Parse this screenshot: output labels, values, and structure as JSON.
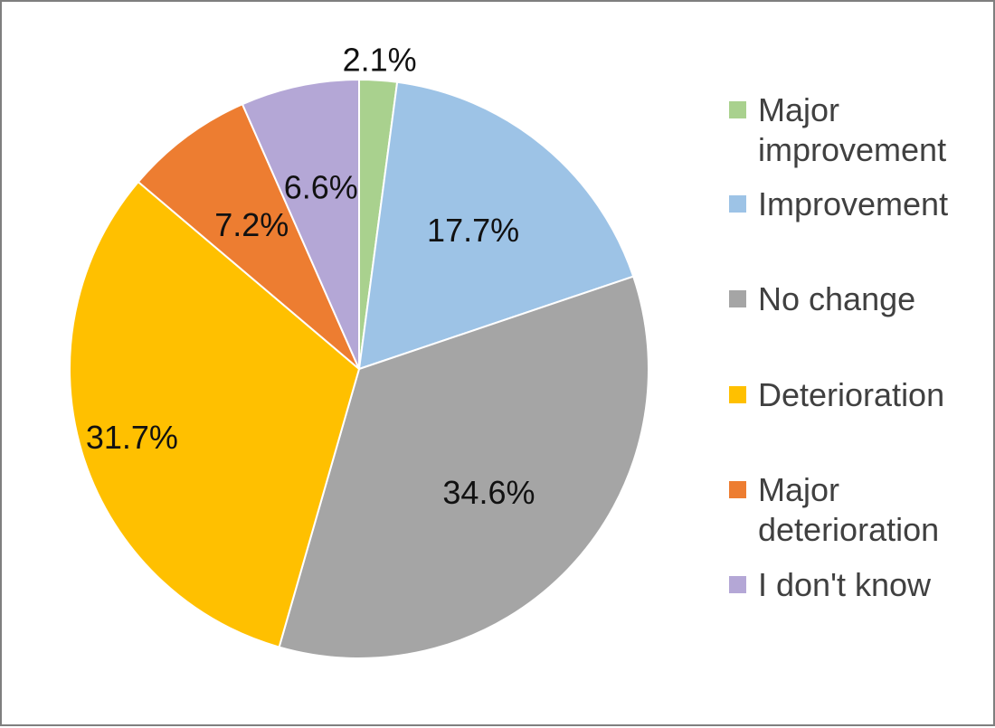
{
  "chart_data": {
    "type": "pie",
    "slices": [
      {
        "label": "Major improvement",
        "value": 2.1,
        "display": "2.1%",
        "color": "#a9d18e"
      },
      {
        "label": "Improvement",
        "value": 17.7,
        "display": "17.7%",
        "color": "#9dc3e6"
      },
      {
        "label": "No change",
        "value": 34.6,
        "display": "34.6%",
        "color": "#a5a5a5"
      },
      {
        "label": "Deterioration",
        "value": 31.7,
        "display": "31.7%",
        "color": "#ffc000"
      },
      {
        "label": "Major deterioration",
        "value": 7.2,
        "display": "7.2%",
        "color": "#ed7d31"
      },
      {
        "label": "I don't know",
        "value": 6.6,
        "display": "6.6%",
        "color": "#b4a7d6"
      }
    ],
    "start": "12 o'clock",
    "direction": "clockwise",
    "legend_position": "right"
  },
  "legend": {
    "items": [
      {
        "line1": "Major",
        "line2": "improvement"
      },
      {
        "line1": "Improvement",
        "line2": ""
      },
      {
        "line1": "No change",
        "line2": ""
      },
      {
        "line1": "Deterioration",
        "line2": ""
      },
      {
        "line1": "Major",
        "line2": "deterioration"
      },
      {
        "line1": "I don't know",
        "line2": ""
      }
    ]
  }
}
